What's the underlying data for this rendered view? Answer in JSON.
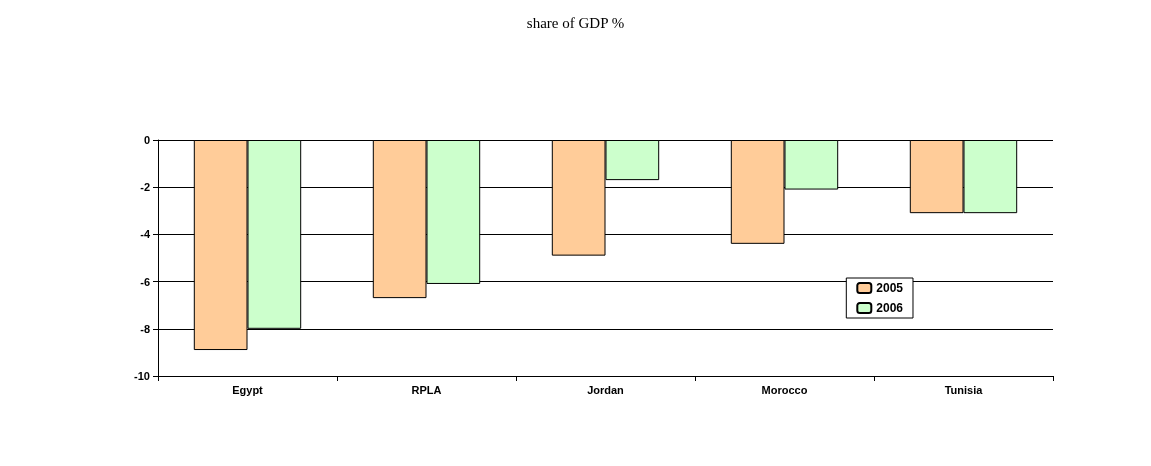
{
  "chart_data": {
    "type": "bar",
    "title": "share of GDP %",
    "categories": [
      "Egypt",
      "RPLA",
      "Jordan",
      "Morocco",
      "Tunisia"
    ],
    "series": [
      {
        "name": "2005",
        "color": "#ffcc99",
        "values": [
          -8.9,
          -6.7,
          -4.9,
          -4.4,
          -3.1
        ]
      },
      {
        "name": "2006",
        "color": "#ccffcc",
        "values": [
          -8.0,
          -6.1,
          -1.7,
          -2.1,
          -3.1
        ]
      }
    ],
    "ylim": [
      -10,
      0
    ],
    "yticks": [
      0,
      -2,
      -4,
      -6,
      -8,
      -10
    ],
    "grid": "y",
    "legend": "right"
  }
}
